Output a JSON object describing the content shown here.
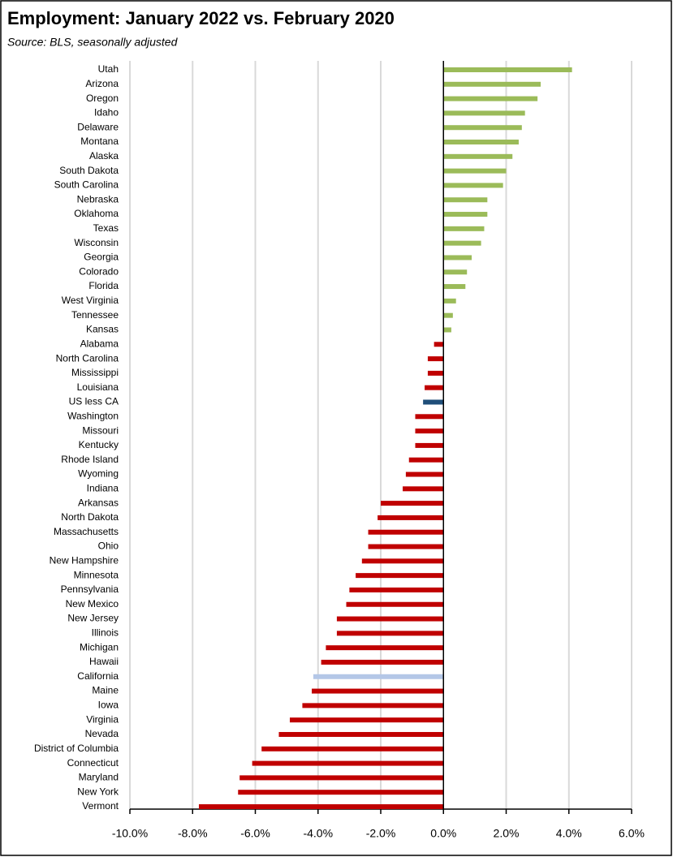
{
  "chart_data": {
    "type": "hbar",
    "title": "Employment:  January 2022 vs. February 2020",
    "subtitle": "Source:  BLS, seasonally adjusted",
    "categories": [
      "Utah",
      "Arizona",
      "Oregon",
      "Idaho",
      "Delaware",
      "Montana",
      "Alaska",
      "South Dakota",
      "South Carolina",
      "Nebraska",
      "Oklahoma",
      "Texas",
      "Wisconsin",
      "Georgia",
      "Colorado",
      "Florida",
      "West Virginia",
      "Tennessee",
      "Kansas",
      "Alabama",
      "North Carolina",
      "Mississippi",
      "Louisiana",
      "US less CA",
      "Washington",
      "Missouri",
      "Kentucky",
      "Rhode Island",
      "Wyoming",
      "Indiana",
      "Arkansas",
      "North Dakota",
      "Massachusetts",
      "Ohio",
      "New Hampshire",
      "Minnesota",
      "Pennsylvania",
      "New Mexico",
      "New Jersey",
      "Illinois",
      "Michigan",
      "Hawaii",
      "California",
      "Maine",
      "Iowa",
      "Virginia",
      "Nevada",
      "District of Columbia",
      "Connecticut",
      "Maryland",
      "New York",
      "Vermont"
    ],
    "values": [
      4.1,
      3.1,
      3.0,
      2.6,
      2.5,
      2.4,
      2.2,
      2.0,
      1.9,
      1.4,
      1.4,
      1.3,
      1.2,
      0.9,
      0.75,
      0.7,
      0.4,
      0.3,
      0.25,
      -0.3,
      -0.5,
      -0.5,
      -0.6,
      -0.65,
      -0.9,
      -0.9,
      -0.9,
      -1.1,
      -1.2,
      -1.3,
      -2.0,
      -2.1,
      -2.4,
      -2.4,
      -2.6,
      -2.8,
      -3.0,
      -3.1,
      -3.4,
      -3.4,
      -3.75,
      -3.9,
      -4.15,
      -4.2,
      -4.5,
      -4.9,
      -5.25,
      -5.8,
      -6.1,
      -6.5,
      -6.55,
      -7.8
    ],
    "positive_color": "#9bbb59",
    "negative_color": "#c00000",
    "highlight_colors": {
      "US less CA": "#1f4e79",
      "California": "#b4c7e7"
    },
    "xlim": [
      -10,
      6
    ],
    "xticks": [
      {
        "value": -10,
        "label": "-10.0%"
      },
      {
        "value": -8,
        "label": "-8.0%"
      },
      {
        "value": -6,
        "label": "-6.0%"
      },
      {
        "value": -4,
        "label": "-4.0%"
      },
      {
        "value": -2,
        "label": "-2.0%"
      },
      {
        "value": 0,
        "label": "0.0%"
      },
      {
        "value": 2,
        "label": "2.0%"
      },
      {
        "value": 4,
        "label": "4.0%"
      },
      {
        "value": 6,
        "label": "6.0%"
      }
    ],
    "grid": true
  }
}
